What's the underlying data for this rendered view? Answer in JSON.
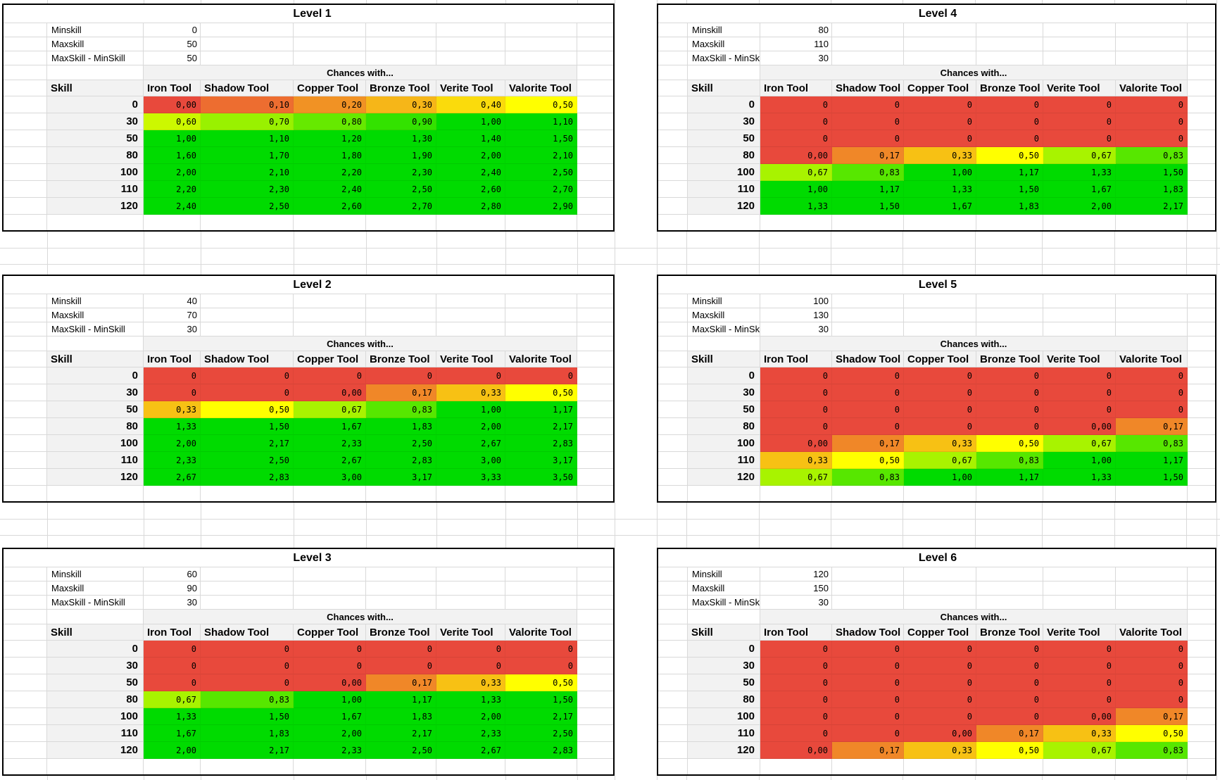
{
  "labels": {
    "minskill": "Minskill",
    "maxskill": "Maxskill",
    "diff": "MaxSkill - MinSkill",
    "chances": "Chances with...",
    "skill": "Skill"
  },
  "columns": [
    "Iron Tool",
    "Shadow Tool",
    "Copper Tool",
    "Bronze Tool",
    "Verite Tool",
    "Valorite Tool"
  ],
  "colors": {
    "scale_low": "#E8493C",
    "scale_mid": "#FFFF00",
    "scale_high": "#00DB00",
    "header_bg": "#F2F2F2",
    "gridline": "#D9D9D9",
    "border": "#000000"
  },
  "tables": [
    {
      "title": "Level 1",
      "minskill": "0",
      "maxskill": "50",
      "diff": "50",
      "rows": [
        [
          "0",
          "0,00",
          "0,10",
          "0,20",
          "0,30",
          "0,40",
          "0,50"
        ],
        [
          "30",
          "0,60",
          "0,70",
          "0,80",
          "0,90",
          "1,00",
          "1,10"
        ],
        [
          "50",
          "1,00",
          "1,10",
          "1,20",
          "1,30",
          "1,40",
          "1,50"
        ],
        [
          "80",
          "1,60",
          "1,70",
          "1,80",
          "1,90",
          "2,00",
          "2,10"
        ],
        [
          "100",
          "2,00",
          "2,10",
          "2,20",
          "2,30",
          "2,40",
          "2,50"
        ],
        [
          "110",
          "2,20",
          "2,30",
          "2,40",
          "2,50",
          "2,60",
          "2,70"
        ],
        [
          "120",
          "2,40",
          "2,50",
          "2,60",
          "2,70",
          "2,80",
          "2,90"
        ]
      ]
    },
    {
      "title": "Level 2",
      "minskill": "40",
      "maxskill": "70",
      "diff": "30",
      "rows": [
        [
          "0",
          "0",
          "0",
          "0",
          "0",
          "0",
          "0"
        ],
        [
          "30",
          "0",
          "0",
          "0,00",
          "0,17",
          "0,33",
          "0,50"
        ],
        [
          "50",
          "0,33",
          "0,50",
          "0,67",
          "0,83",
          "1,00",
          "1,17"
        ],
        [
          "80",
          "1,33",
          "1,50",
          "1,67",
          "1,83",
          "2,00",
          "2,17"
        ],
        [
          "100",
          "2,00",
          "2,17",
          "2,33",
          "2,50",
          "2,67",
          "2,83"
        ],
        [
          "110",
          "2,33",
          "2,50",
          "2,67",
          "2,83",
          "3,00",
          "3,17"
        ],
        [
          "120",
          "2,67",
          "2,83",
          "3,00",
          "3,17",
          "3,33",
          "3,50"
        ]
      ]
    },
    {
      "title": "Level 3",
      "minskill": "60",
      "maxskill": "90",
      "diff": "30",
      "rows": [
        [
          "0",
          "0",
          "0",
          "0",
          "0",
          "0",
          "0"
        ],
        [
          "30",
          "0",
          "0",
          "0",
          "0",
          "0",
          "0"
        ],
        [
          "50",
          "0",
          "0",
          "0,00",
          "0,17",
          "0,33",
          "0,50"
        ],
        [
          "80",
          "0,67",
          "0,83",
          "1,00",
          "1,17",
          "1,33",
          "1,50"
        ],
        [
          "100",
          "1,33",
          "1,50",
          "1,67",
          "1,83",
          "2,00",
          "2,17"
        ],
        [
          "110",
          "1,67",
          "1,83",
          "2,00",
          "2,17",
          "2,33",
          "2,50"
        ],
        [
          "120",
          "2,00",
          "2,17",
          "2,33",
          "2,50",
          "2,67",
          "2,83"
        ]
      ]
    },
    {
      "title": "Level 4",
      "minskill": "80",
      "maxskill": "110",
      "diff": "30",
      "rows": [
        [
          "0",
          "0",
          "0",
          "0",
          "0",
          "0",
          "0"
        ],
        [
          "30",
          "0",
          "0",
          "0",
          "0",
          "0",
          "0"
        ],
        [
          "50",
          "0",
          "0",
          "0",
          "0",
          "0",
          "0"
        ],
        [
          "80",
          "0,00",
          "0,17",
          "0,33",
          "0,50",
          "0,67",
          "0,83"
        ],
        [
          "100",
          "0,67",
          "0,83",
          "1,00",
          "1,17",
          "1,33",
          "1,50"
        ],
        [
          "110",
          "1,00",
          "1,17",
          "1,33",
          "1,50",
          "1,67",
          "1,83"
        ],
        [
          "120",
          "1,33",
          "1,50",
          "1,67",
          "1,83",
          "2,00",
          "2,17"
        ]
      ]
    },
    {
      "title": "Level 5",
      "minskill": "100",
      "maxskill": "130",
      "diff": "30",
      "rows": [
        [
          "0",
          "0",
          "0",
          "0",
          "0",
          "0",
          "0"
        ],
        [
          "30",
          "0",
          "0",
          "0",
          "0",
          "0",
          "0"
        ],
        [
          "50",
          "0",
          "0",
          "0",
          "0",
          "0",
          "0"
        ],
        [
          "80",
          "0",
          "0",
          "0",
          "0",
          "0,00",
          "0,17"
        ],
        [
          "100",
          "0,00",
          "0,17",
          "0,33",
          "0,50",
          "0,67",
          "0,83"
        ],
        [
          "110",
          "0,33",
          "0,50",
          "0,67",
          "0,83",
          "1,00",
          "1,17"
        ],
        [
          "120",
          "0,67",
          "0,83",
          "1,00",
          "1,17",
          "1,33",
          "1,50"
        ]
      ]
    },
    {
      "title": "Level 6",
      "minskill": "120",
      "maxskill": "150",
      "diff": "30",
      "rows": [
        [
          "0",
          "0",
          "0",
          "0",
          "0",
          "0",
          "0"
        ],
        [
          "30",
          "0",
          "0",
          "0",
          "0",
          "0",
          "0"
        ],
        [
          "50",
          "0",
          "0",
          "0",
          "0",
          "0",
          "0"
        ],
        [
          "80",
          "0",
          "0",
          "0",
          "0",
          "0",
          "0"
        ],
        [
          "100",
          "0",
          "0",
          "0",
          "0",
          "0,00",
          "0,17"
        ],
        [
          "110",
          "0",
          "0",
          "0,00",
          "0,17",
          "0,33",
          "0,50"
        ],
        [
          "120",
          "0,00",
          "0,17",
          "0,33",
          "0,50",
          "0,67",
          "0,83"
        ]
      ]
    }
  ]
}
